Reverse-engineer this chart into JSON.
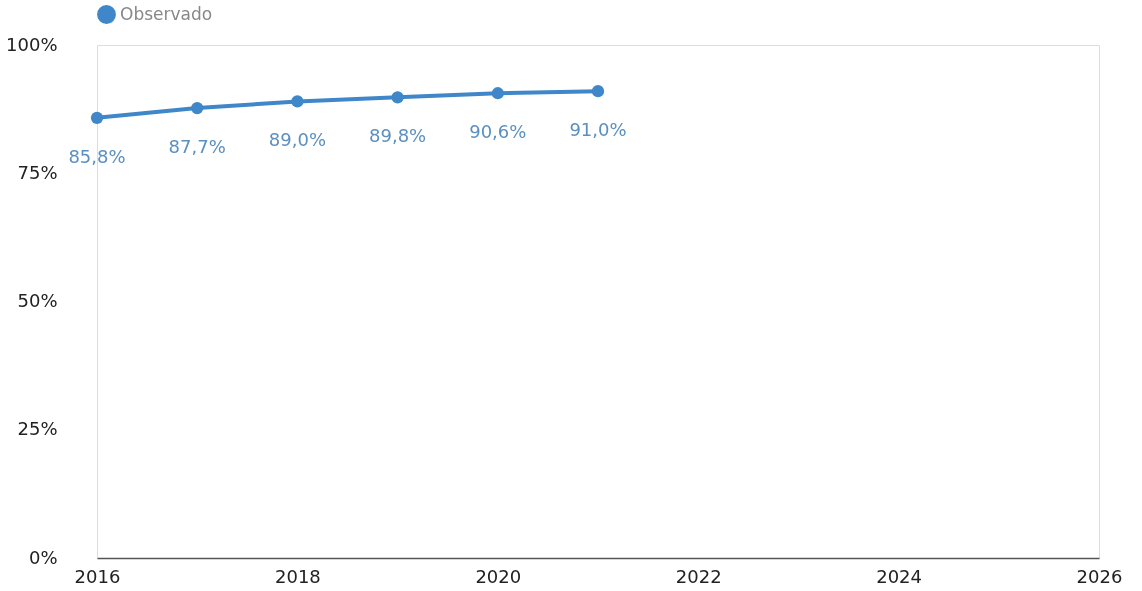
{
  "chart_data": {
    "type": "line",
    "x": [
      2016,
      2017,
      2018,
      2019,
      2020,
      2021
    ],
    "series": [
      {
        "name": "Observado",
        "color": "#3f87c8",
        "values": [
          85.8,
          87.7,
          89.0,
          89.8,
          90.6,
          91.0
        ],
        "value_labels": [
          "85,8%",
          "87,7%",
          "89,0%",
          "89,8%",
          "90,6%",
          "91,0%"
        ]
      }
    ],
    "xlim": [
      2016,
      2026
    ],
    "xticks": [
      2016,
      2018,
      2020,
      2022,
      2024,
      2026
    ],
    "ylim": [
      0,
      100
    ],
    "yticks": [
      {
        "value": 0,
        "label": "0%"
      },
      {
        "value": 25,
        "label": "25%"
      },
      {
        "value": 50,
        "label": "50%"
      },
      {
        "value": 75,
        "label": "75%"
      },
      {
        "value": 100,
        "label": "100%"
      }
    ],
    "grid": false,
    "legend": "top",
    "marker": "circle",
    "line_style": "solid"
  }
}
